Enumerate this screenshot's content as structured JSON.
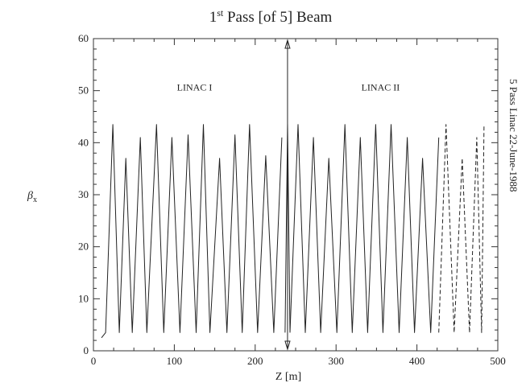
{
  "chart_data": {
    "type": "line",
    "title": {
      "prefix": "1",
      "superscript": "st",
      "rest": " Pass [of 5] Beam"
    },
    "xlabel": "Z [m]",
    "ylabel": {
      "symbol": "β",
      "subscript": "x"
    },
    "side_label": "5 Pass Linac  22-June-1988",
    "xlim": [
      0,
      500
    ],
    "ylim": [
      0,
      60
    ],
    "xticks": [
      "0",
      "100",
      "200",
      "300",
      "400",
      "500"
    ],
    "yticks": [
      "0",
      "10",
      "20",
      "30",
      "40",
      "50",
      "60"
    ],
    "grid": false,
    "annotations": [
      {
        "text": "LINAC I",
        "x": 125,
        "y": 50
      },
      {
        "text": "LINAC II",
        "x": 355,
        "y": 50
      }
    ],
    "divider_x": 240,
    "series": [
      {
        "style": "solid",
        "x": [
          10,
          15,
          24,
          32,
          40,
          48,
          58,
          66,
          78,
          87,
          97,
          107,
          117,
          127,
          136,
          144,
          156,
          165,
          175,
          184,
          193,
          203,
          213,
          223,
          233
        ],
        "y": [
          2.5,
          3.5,
          43.5,
          3.5,
          37,
          3.5,
          41,
          3.5,
          43.5,
          3.5,
          41,
          3.5,
          41.5,
          3.5,
          43.5,
          3.5,
          37,
          3.5,
          41.5,
          3.5,
          43.5,
          3.5,
          37.5,
          3.5,
          41
        ]
      },
      {
        "style": "solid",
        "x": [
          237,
          240,
          243
        ],
        "y": [
          3.5,
          43.5,
          3.5
        ]
      },
      {
        "style": "solid",
        "x": [
          243,
          253,
          262,
          272,
          281,
          291,
          301,
          311,
          320,
          330,
          339,
          349,
          358,
          368,
          378,
          388,
          397,
          407,
          417,
          427
        ],
        "y": [
          3.5,
          43.5,
          3.5,
          41,
          3.5,
          37,
          3.5,
          43.5,
          3.5,
          41,
          3.5,
          43.5,
          3.5,
          43.5,
          3.5,
          41,
          3.5,
          37,
          3.5,
          41
        ]
      },
      {
        "style": "dashed",
        "x": [
          427,
          436,
          446,
          456,
          465,
          474,
          480,
          483
        ],
        "y": [
          3.5,
          43.5,
          3.5,
          37,
          3.5,
          41,
          3.5,
          43.5
        ]
      }
    ]
  }
}
